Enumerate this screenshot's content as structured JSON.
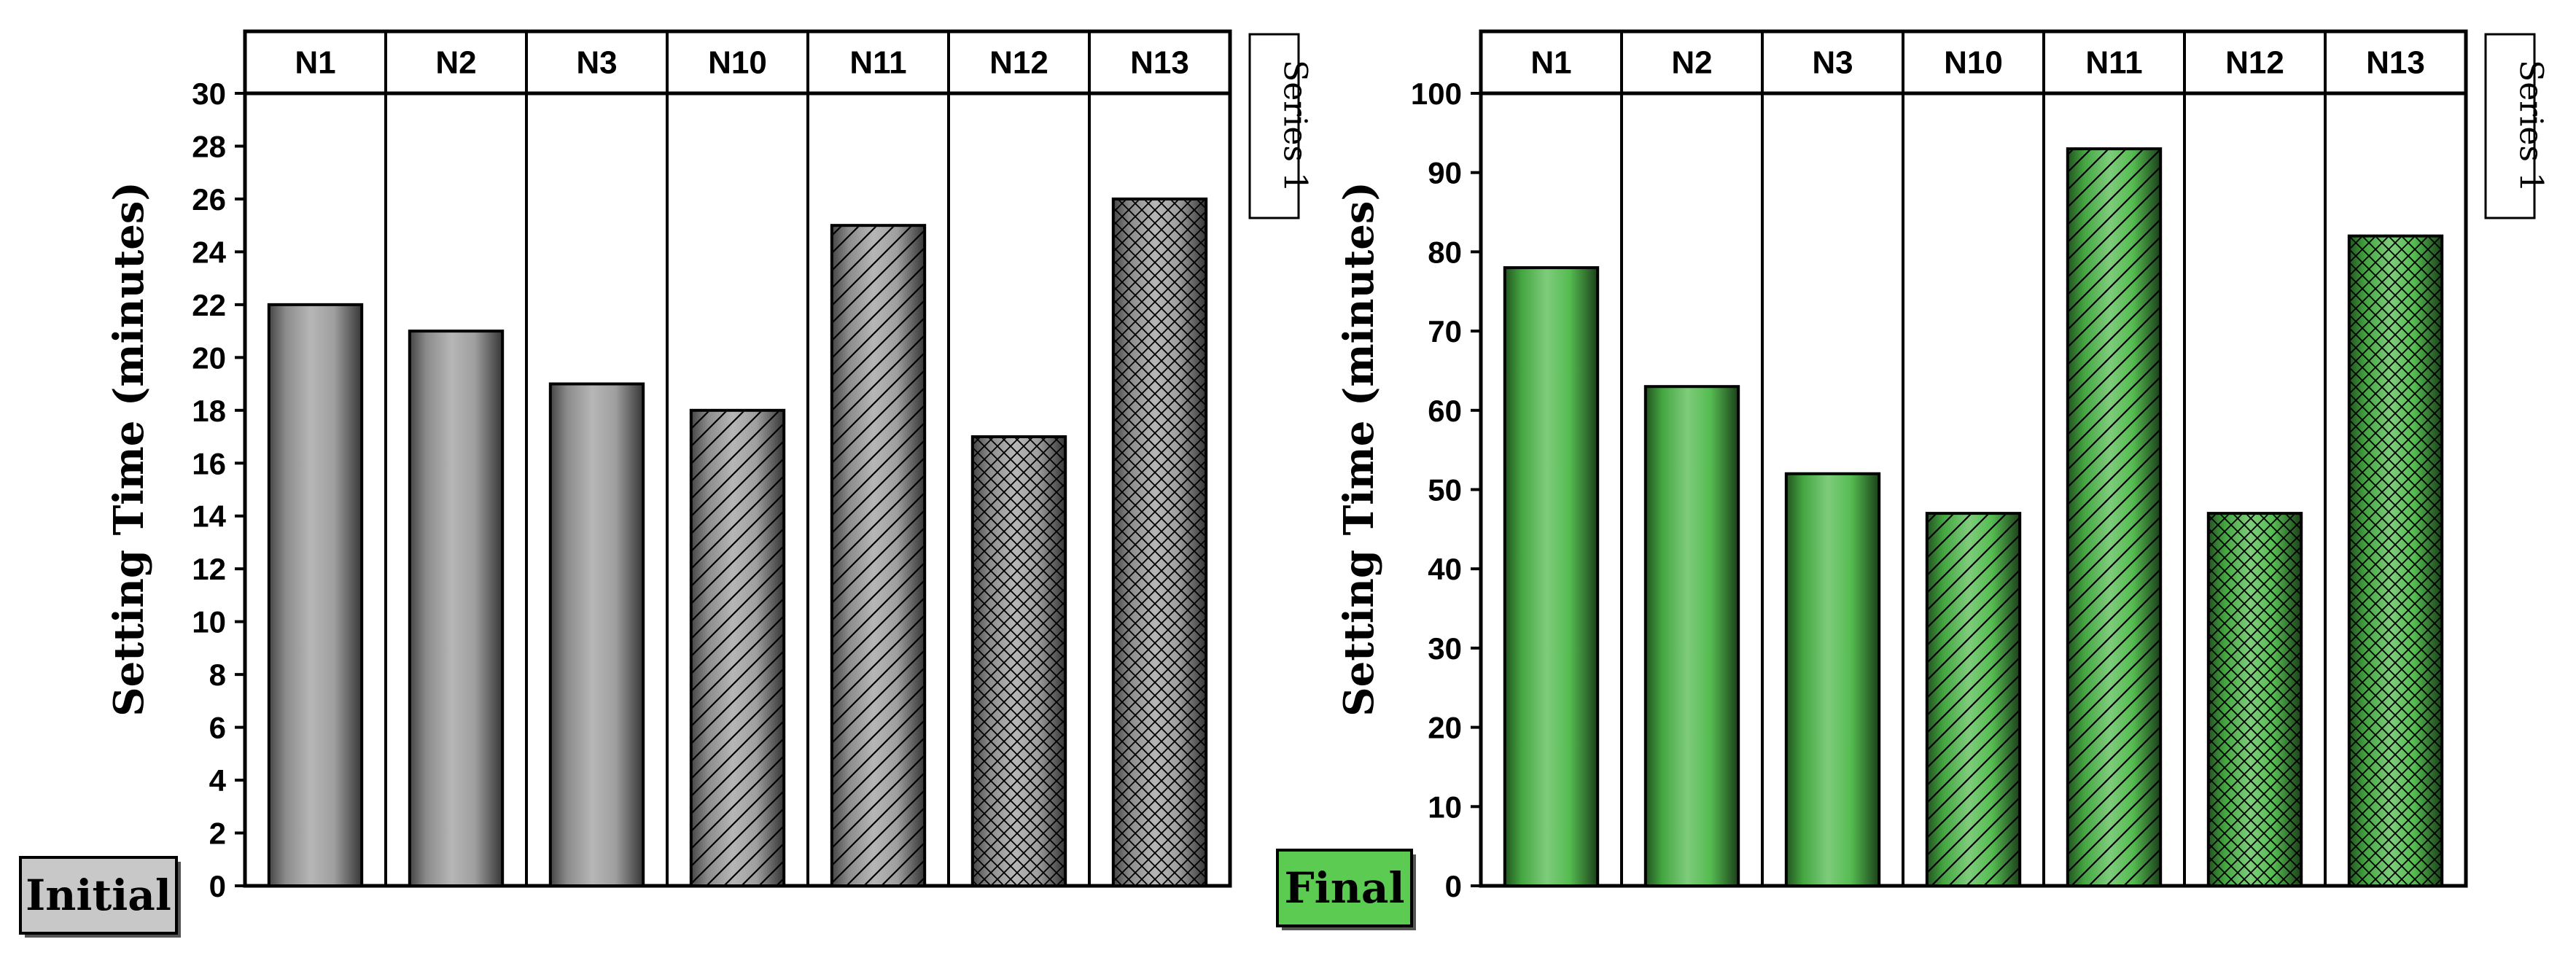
{
  "chart_data": [
    {
      "type": "bar",
      "panel_label": "Initial",
      "categories": [
        "N1",
        "N2",
        "N3",
        "N10",
        "N11",
        "N12",
        "N13"
      ],
      "series": [
        {
          "name": "Series 1",
          "values": [
            22,
            21,
            19,
            18,
            25,
            17,
            26
          ]
        }
      ],
      "patterns": [
        "solid",
        "solid",
        "solid",
        "diagonal",
        "diagonal",
        "crosshatch",
        "crosshatch"
      ],
      "ylabel": "Setting Time (minutes)",
      "ylim": [
        0,
        30
      ],
      "ytick_step": 2,
      "grid": false,
      "legend": "right",
      "bar_color": "#9a9a9a",
      "label_box_color": "#c8c8c8"
    },
    {
      "type": "bar",
      "panel_label": "Final",
      "categories": [
        "N1",
        "N2",
        "N3",
        "N10",
        "N11",
        "N12",
        "N13"
      ],
      "series": [
        {
          "name": "Series 1",
          "values": [
            78,
            63,
            52,
            47,
            93,
            47,
            82
          ]
        }
      ],
      "patterns": [
        "solid",
        "solid",
        "solid",
        "diagonal",
        "diagonal",
        "crosshatch",
        "crosshatch"
      ],
      "ylabel": "Setting Time (minutes)",
      "ylim": [
        0,
        100
      ],
      "ytick_step": 10,
      "grid": false,
      "legend": "right",
      "bar_color": "#4cb848",
      "label_box_color": "#5ccb52"
    }
  ]
}
